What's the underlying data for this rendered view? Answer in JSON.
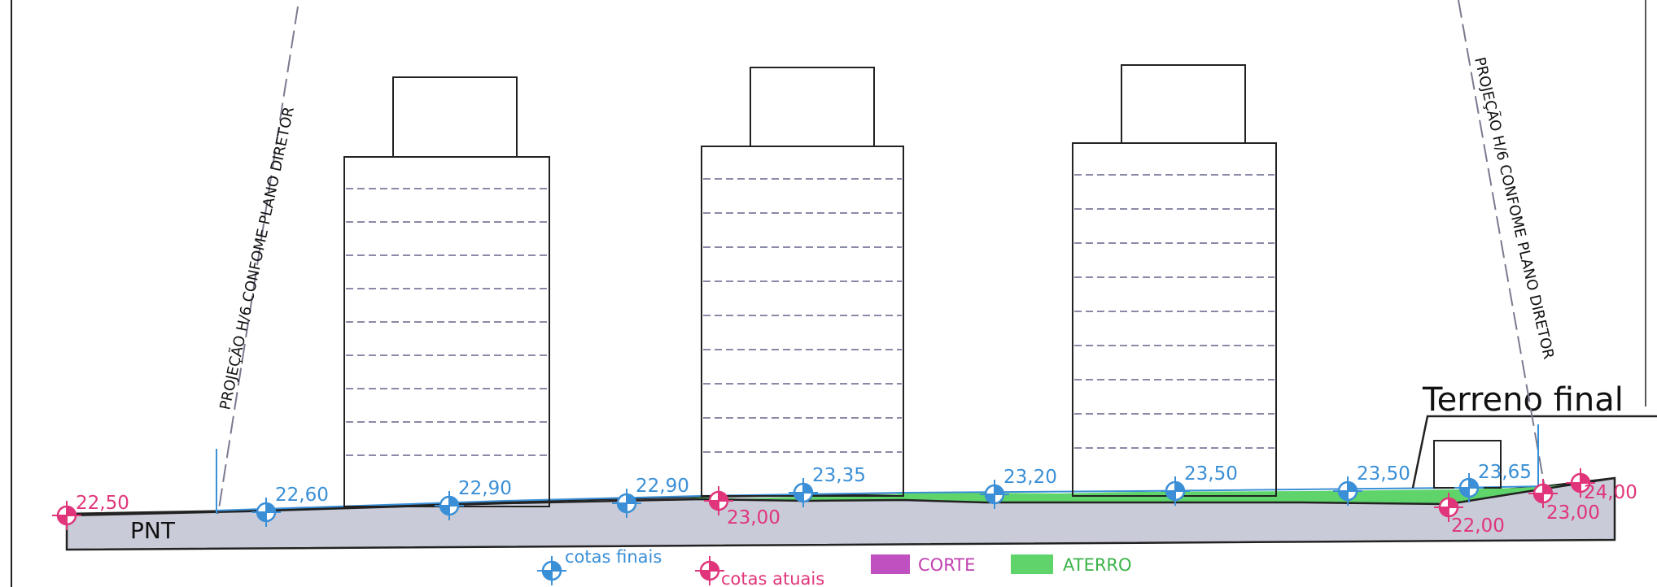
{
  "labels": {
    "projection_left": "PROJEÇÃO H/6 CONFOME PLANO DIRETOR",
    "projection_right": "PROJEÇÃO H/6 CONFOME PLANO DIRETOR",
    "terrain_final": "Terreno final",
    "pnt": "PNT"
  },
  "elevations": {
    "final": [
      "22,60",
      "22,90",
      "22,90",
      "23,35",
      "23,20",
      "23,50",
      "23,50",
      "23,65"
    ],
    "current": [
      "22,50",
      "23,00",
      "22,00",
      "23,00",
      "24,00"
    ]
  },
  "legend": {
    "finals": "cotas finais",
    "currents": "cotas atuais",
    "cut": "CORTE",
    "fill": "ATERRO"
  },
  "colors": {
    "final_marker": "#3a8fd6",
    "current_marker": "#e0357a",
    "cut": "#c050c0",
    "fill": "#5ed46a",
    "ground": "#c9ccd8",
    "floor_lines": "#8a8aa8"
  }
}
